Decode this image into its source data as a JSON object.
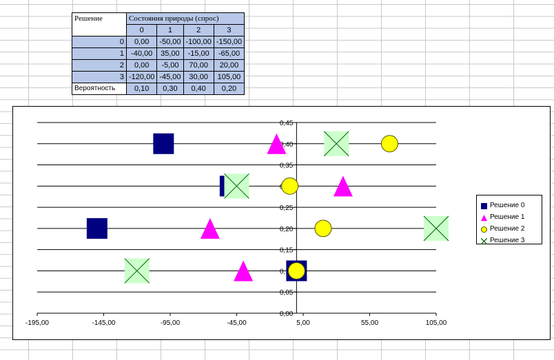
{
  "table": {
    "decision_header": "Решение",
    "states_header": "Состояния природы (спрос)",
    "state_labels": [
      "0",
      "1",
      "2",
      "3"
    ],
    "rows": [
      {
        "label": "0",
        "values": [
          "0,00",
          "-50,00",
          "-100,00",
          "-150,00"
        ]
      },
      {
        "label": "1",
        "values": [
          "-40,00",
          "35,00",
          "-15,00",
          "-65,00"
        ]
      },
      {
        "label": "2",
        "values": [
          "0,00",
          "-5,00",
          "70,00",
          "20,00"
        ]
      },
      {
        "label": "3",
        "values": [
          "-120,00",
          "-45,00",
          "30,00",
          "105,00"
        ]
      }
    ],
    "probability_label": "Вероятность",
    "probabilities": [
      "0,10",
      "0,30",
      "0,40",
      "0,20"
    ]
  },
  "chart_data": {
    "type": "scatter",
    "xlim": [
      -195,
      105
    ],
    "ylim": [
      0,
      0.45
    ],
    "x_ticks": [
      -195,
      -145,
      -95,
      -45,
      5,
      55,
      105
    ],
    "x_tick_labels": [
      "-195,00",
      "-145,00",
      "-95,00",
      "-45,00",
      "5,00",
      "55,00",
      "105,00"
    ],
    "y_ticks": [
      0,
      0.05,
      0.1,
      0.15,
      0.2,
      0.25,
      0.3,
      0.35,
      0.4,
      0.45
    ],
    "y_tick_labels": [
      "0,00",
      "0,05",
      "0,10",
      "0,15",
      "0,20",
      "0,25",
      "0,30",
      "0,35",
      "0,40",
      "0,45"
    ],
    "grid": "horizontal",
    "legend_position": "right",
    "series": [
      {
        "name": "Решение 0",
        "marker": "square",
        "color": "#000080",
        "x": [
          0,
          -50,
          -100,
          -150
        ],
        "y": [
          0.1,
          0.3,
          0.4,
          0.2
        ]
      },
      {
        "name": "Решение 1",
        "marker": "triangle",
        "color": "#ff00ff",
        "x": [
          -40,
          35,
          -15,
          -65
        ],
        "y": [
          0.1,
          0.3,
          0.4,
          0.2
        ]
      },
      {
        "name": "Решение 2",
        "marker": "circle",
        "color": "#ffff00",
        "x": [
          0,
          -5,
          70,
          20
        ],
        "y": [
          0.1,
          0.3,
          0.4,
          0.2
        ]
      },
      {
        "name": "Решение 3",
        "marker": "x",
        "color": "#006600",
        "fill": "#ccffcc",
        "x": [
          -120,
          -45,
          30,
          105
        ],
        "y": [
          0.1,
          0.3,
          0.4,
          0.2
        ]
      }
    ]
  }
}
